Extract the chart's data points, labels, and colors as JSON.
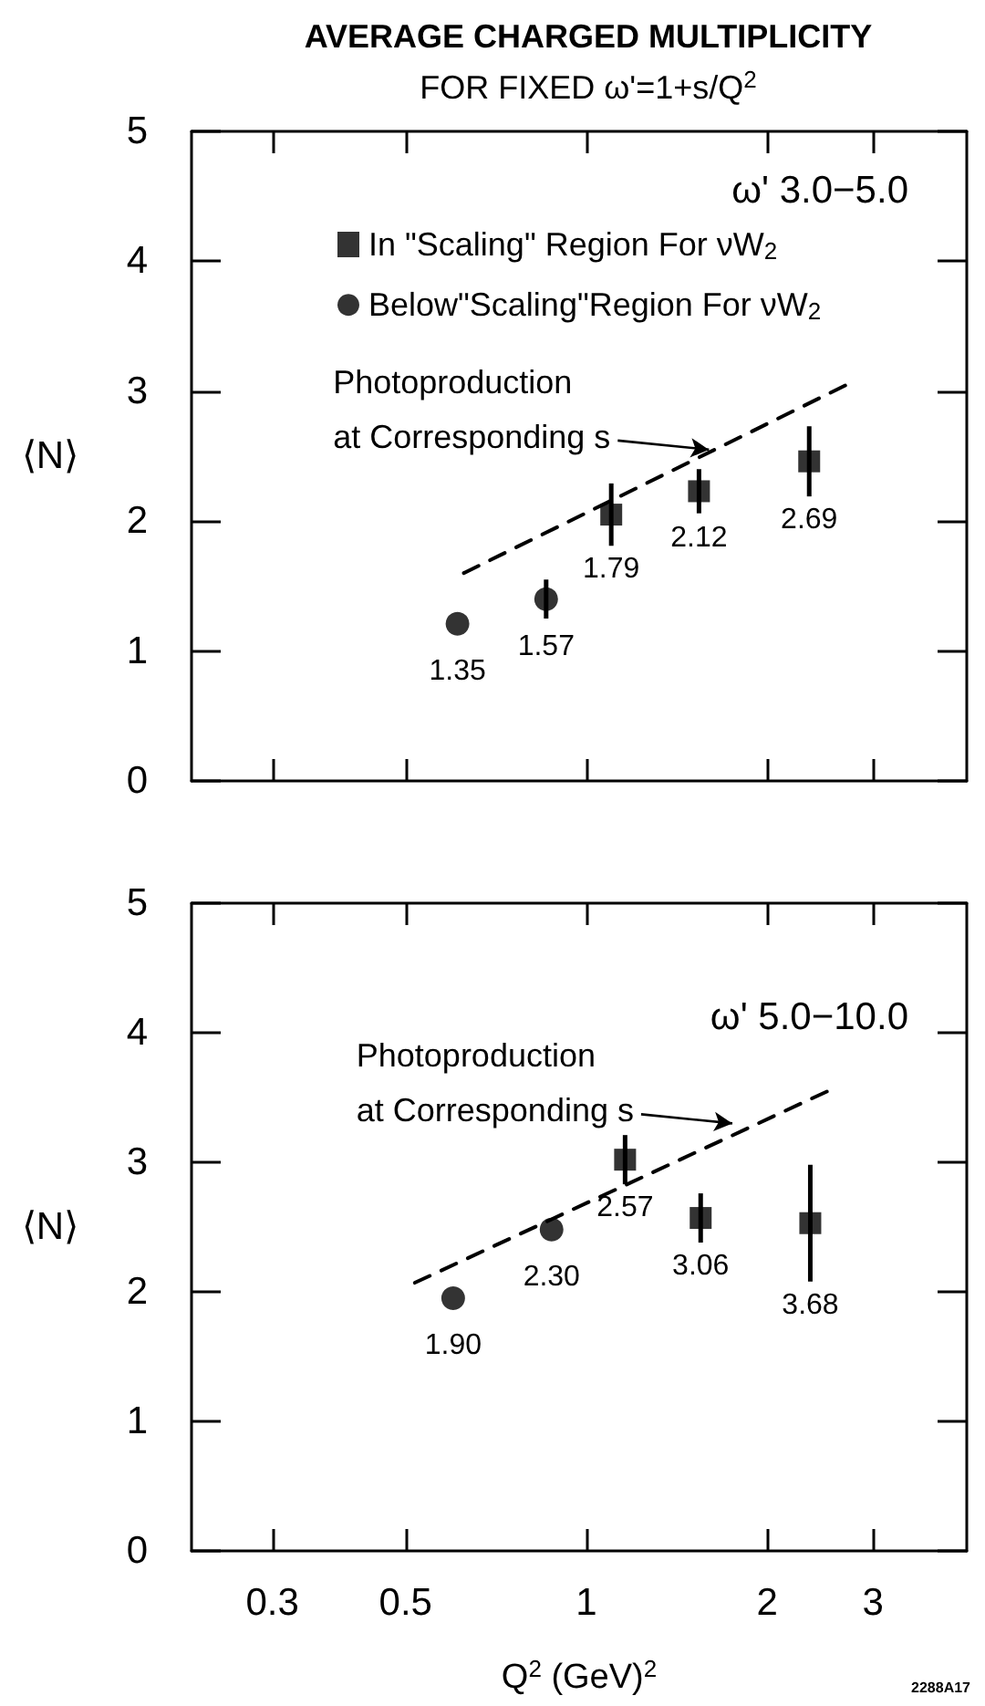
{
  "chart_data": [
    {
      "type": "scatter",
      "title": "AVERAGE CHARGED MULTIPLICITY",
      "subtitle": "FOR FIXED ω'=1+s/Q$^{2}$",
      "ylabel": "⟨N⟩",
      "log": "x",
      "xlim": [
        0.22,
        4.3
      ],
      "xticks": [
        0.3,
        0.5,
        1,
        2,
        3
      ],
      "ylim": [
        0,
        5
      ],
      "yticks": [
        0,
        1,
        2,
        3,
        4,
        5
      ],
      "tick_labels": "y",
      "grid": false,
      "legend": "top right",
      "annotations": [
        "ω' 3.0−5.0",
        {
          "text": "Photoproduction\nat Corresponding s",
          "x": 1.6,
          "y": 2.55
        },
        {
          "text": "1.35",
          "x": 0.61,
          "y": 1.21
        },
        {
          "text": "1.57",
          "x": 0.857,
          "y": 1.4
        },
        {
          "text": "1.79",
          "x": 1.1,
          "y": 2.05
        },
        {
          "text": "2.12",
          "x": 1.54,
          "y": 2.23
        },
        {
          "text": "2.69",
          "x": 2.35,
          "y": 2.46
        }
      ],
      "series": [
        {
          "name": "In \"Scaling\" Region For νW$_{2}$",
          "type": "scatter",
          "marker": "square",
          "color": "#000000",
          "x": [
            1.1,
            1.54,
            2.35
          ],
          "values": [
            2.05,
            2.23,
            2.46
          ],
          "errors": [
            0.24,
            0.17,
            0.27
          ]
        },
        {
          "name": "Below\"Scaling\"Region For νW$_{2}$",
          "type": "scatter",
          "marker": "circle",
          "color": "#000000",
          "x": [
            0.61,
            0.857
          ],
          "values": [
            1.21,
            1.4
          ],
          "errors": [
            null,
            0.15
          ]
        },
        {
          "type": "line",
          "marker": "none",
          "line_style": "dashed",
          "color": "#000000",
          "x": [
            0.625,
            2.77
          ],
          "values": [
            1.6,
            3.07
          ]
        }
      ]
    },
    {
      "type": "scatter",
      "xlabel": "Q$^{2}$ (GeV)$^{2}$",
      "ylabel": "⟨N⟩",
      "log": "x",
      "xlim": [
        0.22,
        4.3
      ],
      "xticks": [
        0.3,
        0.5,
        1,
        2,
        3
      ],
      "ylim": [
        0,
        5
      ],
      "yticks": [
        0,
        1,
        2,
        3,
        4,
        5
      ],
      "grid": false,
      "legend": false,
      "annotations": [
        "ω' 5.0−10.0",
        {
          "text": "Photoproduction\nat Corresponding s",
          "x": 1.75,
          "y": 3.3
        },
        {
          "text": "1.90",
          "x": 0.6,
          "y": 1.95
        },
        {
          "text": "2.30",
          "x": 0.875,
          "y": 2.48
        },
        {
          "text": "2.57",
          "x": 1.16,
          "y": 3.02
        },
        {
          "text": "3.06",
          "x": 1.55,
          "y": 2.57
        },
        {
          "text": "3.68",
          "x": 2.36,
          "y": 2.53
        },
        "2288A17"
      ],
      "series": [
        {
          "type": "scatter",
          "marker": "square",
          "color": "#000000",
          "x": [
            1.16,
            1.55,
            2.36
          ],
          "values": [
            3.02,
            2.57,
            2.53
          ],
          "errors": [
            0.19,
            0.19,
            0.45
          ]
        },
        {
          "type": "scatter",
          "marker": "circle",
          "color": "#000000",
          "x": [
            0.6,
            0.875
          ],
          "values": [
            1.95,
            2.48
          ],
          "errors": [
            null,
            null
          ]
        },
        {
          "type": "line",
          "marker": "none",
          "line_style": "dashed",
          "color": "#000000",
          "x": [
            0.518,
            2.58
          ],
          "values": [
            2.07,
            3.57
          ]
        }
      ]
    }
  ]
}
